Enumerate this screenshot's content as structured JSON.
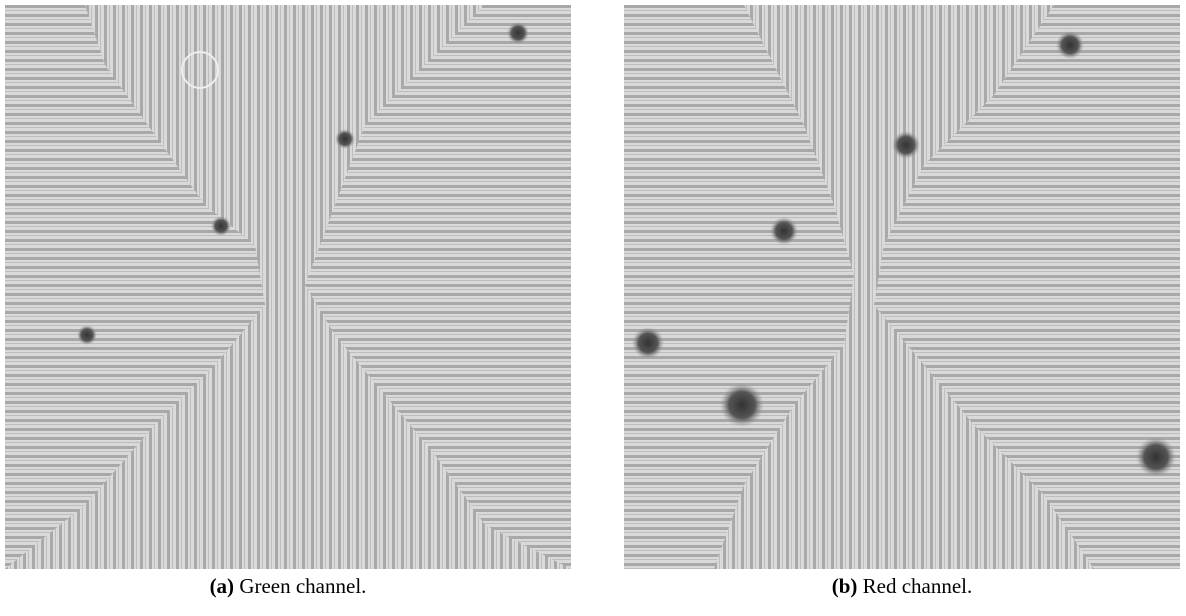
{
  "figure": {
    "panels": [
      {
        "label": "(a)",
        "caption": "Green channel."
      },
      {
        "label": "(b)",
        "caption": "Red channel."
      }
    ]
  }
}
